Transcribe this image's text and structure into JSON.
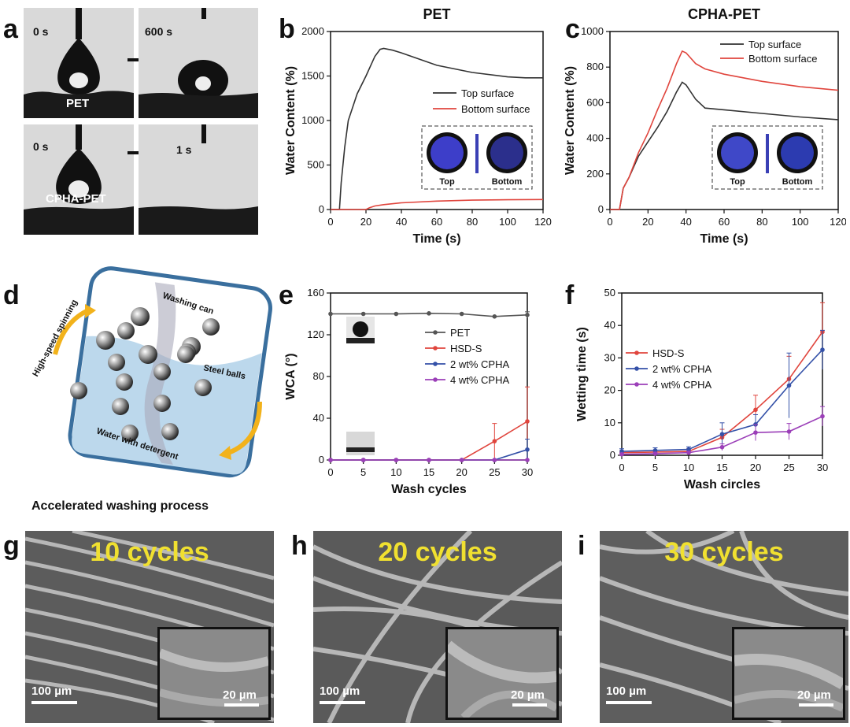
{
  "panel_letters": {
    "a": "a",
    "b": "b",
    "c": "c",
    "d": "d",
    "e": "e",
    "f": "f",
    "g": "g",
    "h": "h",
    "i": "i"
  },
  "panel_a": {
    "t0_top": "0 s",
    "t1_top": "600 s",
    "sample_top": "PET",
    "t0_bottom": "0 s",
    "t1_bottom": "1 s",
    "sample_bottom": "CPHA-PET"
  },
  "panel_d": {
    "caption": "Accelerated washing process",
    "label_spin": "High-speed spinning",
    "label_can": "Washing can",
    "label_balls": "Steel balls",
    "label_water": "Water with detergent",
    "colors": {
      "frame": "#3a6f9e",
      "water": "#bcd8ec",
      "arrow": "#f2b21b"
    }
  },
  "panel_g": {
    "title": "10 cycles",
    "scale_main": "100 µm",
    "scale_inset": "20 µm"
  },
  "panel_h": {
    "title": "20 cycles",
    "scale_main": "100 µm",
    "scale_inset": "20 µm"
  },
  "panel_i": {
    "title": "30 cycles",
    "scale_main": "100 µm",
    "scale_inset": "20 µm"
  },
  "chart_data": [
    {
      "id": "b",
      "type": "line",
      "title": "PET",
      "xlabel": "Time (s)",
      "ylabel": "Water Content (%)",
      "xlim": [
        0,
        120
      ],
      "ylim": [
        0,
        2000
      ],
      "xticks": [
        0,
        20,
        40,
        60,
        80,
        100,
        120
      ],
      "yticks": [
        0,
        500,
        1000,
        1500,
        2000
      ],
      "series": [
        {
          "name": "Top surface",
          "color": "#333333",
          "x": [
            0,
            5,
            6,
            8,
            10,
            15,
            20,
            25,
            28,
            30,
            35,
            40,
            50,
            60,
            80,
            100,
            110,
            120
          ],
          "y": [
            0,
            0,
            300,
            700,
            1000,
            1300,
            1500,
            1720,
            1800,
            1810,
            1790,
            1760,
            1690,
            1620,
            1540,
            1490,
            1480,
            1480
          ]
        },
        {
          "name": "Bottom surface",
          "color": "#e0453d",
          "x": [
            0,
            20,
            22,
            25,
            30,
            40,
            60,
            80,
            100,
            120
          ],
          "y": [
            0,
            0,
            20,
            40,
            55,
            75,
            95,
            105,
            110,
            112
          ]
        }
      ],
      "inset_labels": {
        "left": "Top",
        "right": "Bottom"
      }
    },
    {
      "id": "c",
      "type": "line",
      "title": "CPHA-PET",
      "xlabel": "Time (s)",
      "ylabel": "Water Content (%)",
      "xlim": [
        0,
        120
      ],
      "ylim": [
        0,
        1000
      ],
      "xticks": [
        0,
        20,
        40,
        60,
        80,
        100,
        120
      ],
      "yticks": [
        0,
        200,
        400,
        600,
        800,
        1000
      ],
      "series": [
        {
          "name": "Top surface",
          "color": "#333333",
          "x": [
            0,
            5,
            7,
            10,
            15,
            20,
            25,
            30,
            35,
            38,
            40,
            45,
            50,
            60,
            80,
            100,
            120
          ],
          "y": [
            0,
            0,
            120,
            180,
            300,
            380,
            460,
            550,
            660,
            715,
            700,
            620,
            570,
            560,
            540,
            520,
            505
          ]
        },
        {
          "name": "Bottom surface",
          "color": "#e0453d",
          "x": [
            0,
            5,
            7,
            10,
            15,
            20,
            25,
            30,
            35,
            38,
            40,
            45,
            50,
            60,
            80,
            100,
            120
          ],
          "y": [
            0,
            0,
            120,
            180,
            320,
            430,
            560,
            680,
            820,
            890,
            880,
            820,
            790,
            760,
            720,
            690,
            670
          ]
        }
      ],
      "inset_labels": {
        "left": "Top",
        "right": "Bottom"
      }
    },
    {
      "id": "e",
      "type": "line",
      "xlabel": "Wash cycles",
      "ylabel": "WCA (°)",
      "xlim": [
        0,
        30
      ],
      "ylim": [
        0,
        160
      ],
      "xticks": [
        0,
        5,
        10,
        15,
        20,
        25,
        30
      ],
      "yticks": [
        0,
        40,
        80,
        120,
        160
      ],
      "series": [
        {
          "name": "PET",
          "color": "#555555",
          "x": [
            0,
            5,
            10,
            15,
            20,
            25,
            30
          ],
          "y": [
            140,
            140,
            140,
            140.5,
            140,
            137.5,
            139
          ],
          "err": [
            0,
            0,
            0,
            0,
            0,
            0,
            3
          ]
        },
        {
          "name": "HSD-S",
          "color": "#e0453d",
          "x": [
            0,
            5,
            10,
            15,
            20,
            25,
            30
          ],
          "y": [
            0,
            0,
            0,
            0,
            0,
            18,
            37
          ],
          "err": [
            0,
            0,
            0,
            0,
            0,
            17,
            33
          ]
        },
        {
          "name": "2 wt% CPHA",
          "color": "#3451a8",
          "x": [
            0,
            5,
            10,
            15,
            20,
            25,
            30
          ],
          "y": [
            0,
            0,
            0,
            0,
            0,
            0,
            10
          ],
          "err": [
            0,
            0,
            0,
            0,
            0,
            0,
            10
          ]
        },
        {
          "name": "4 wt% CPHA",
          "color": "#9b3fb8",
          "x": [
            0,
            5,
            10,
            15,
            20,
            25,
            30
          ],
          "y": [
            0,
            0,
            0,
            0,
            0,
            0,
            0
          ],
          "err": [
            0,
            0,
            0,
            0,
            0,
            0,
            0
          ]
        }
      ]
    },
    {
      "id": "f",
      "type": "line",
      "xlabel": "Wash circles",
      "ylabel": "Wetting time (s)",
      "xlim": [
        0,
        30
      ],
      "ylim": [
        0,
        50
      ],
      "xticks": [
        0,
        5,
        10,
        15,
        20,
        25,
        30
      ],
      "yticks": [
        0,
        10,
        20,
        30,
        40,
        50
      ],
      "series": [
        {
          "name": "HSD-S",
          "color": "#e0453d",
          "x": [
            0,
            5,
            10,
            15,
            20,
            25,
            30
          ],
          "y": [
            0.8,
            1,
            1.2,
            5.5,
            14,
            23.5,
            38
          ],
          "err": [
            0.6,
            0.6,
            0.8,
            2.5,
            4.5,
            7,
            9
          ]
        },
        {
          "name": "2 wt% CPHA",
          "color": "#3451a8",
          "x": [
            0,
            5,
            10,
            15,
            20,
            25,
            30
          ],
          "y": [
            1.2,
            1.5,
            1.8,
            6.5,
            9.5,
            21.5,
            32.5
          ],
          "err": [
            0.8,
            0.8,
            0.8,
            3.5,
            3,
            10,
            6
          ]
        },
        {
          "name": "4 wt% CPHA",
          "color": "#9b3fb8",
          "x": [
            0,
            5,
            10,
            15,
            20,
            25,
            30
          ],
          "y": [
            0.3,
            0.5,
            0.8,
            2.5,
            7,
            7.3,
            12
          ],
          "err": [
            0.4,
            0.4,
            0.5,
            1,
            2.5,
            2.5,
            3
          ]
        }
      ]
    }
  ]
}
